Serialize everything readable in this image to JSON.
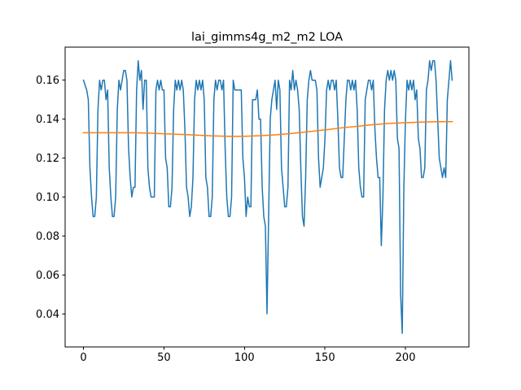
{
  "chart_data": {
    "type": "line",
    "title": "lai_gimms4g_m2_m2 LOA",
    "xlabel": "",
    "ylabel": "",
    "xlim": [
      -11.4,
      239.4
    ],
    "ylim": [
      0.023,
      0.177
    ],
    "xticks": [
      0,
      50,
      100,
      150,
      200
    ],
    "yticks": [
      0.04,
      0.06,
      0.08,
      0.1,
      0.12,
      0.14,
      0.16
    ],
    "ytick_decimals": 2,
    "grid": false,
    "legend": "none",
    "series": [
      {
        "color": "#1f77b4",
        "points": [
          [
            0,
            0.16
          ],
          [
            2,
            0.155
          ],
          [
            3,
            0.15
          ],
          [
            4,
            0.115
          ],
          [
            5,
            0.1
          ],
          [
            6,
            0.09
          ],
          [
            7,
            0.09
          ],
          [
            8,
            0.1
          ],
          [
            9,
            0.145
          ],
          [
            10,
            0.16
          ],
          [
            11,
            0.155
          ],
          [
            12,
            0.16
          ],
          [
            13,
            0.16
          ],
          [
            14,
            0.15
          ],
          [
            15,
            0.155
          ],
          [
            16,
            0.115
          ],
          [
            17,
            0.1
          ],
          [
            18,
            0.09
          ],
          [
            19,
            0.09
          ],
          [
            20,
            0.1
          ],
          [
            21,
            0.145
          ],
          [
            22,
            0.16
          ],
          [
            23,
            0.155
          ],
          [
            24,
            0.16
          ],
          [
            25,
            0.165
          ],
          [
            26,
            0.165
          ],
          [
            27,
            0.16
          ],
          [
            28,
            0.125
          ],
          [
            29,
            0.11
          ],
          [
            30,
            0.1
          ],
          [
            31,
            0.105
          ],
          [
            32,
            0.105
          ],
          [
            33,
            0.155
          ],
          [
            34,
            0.17
          ],
          [
            35,
            0.16
          ],
          [
            36,
            0.165
          ],
          [
            37,
            0.145
          ],
          [
            38,
            0.16
          ],
          [
            39,
            0.16
          ],
          [
            40,
            0.115
          ],
          [
            41,
            0.105
          ],
          [
            42,
            0.1
          ],
          [
            43,
            0.1
          ],
          [
            44,
            0.1
          ],
          [
            45,
            0.155
          ],
          [
            46,
            0.16
          ],
          [
            47,
            0.155
          ],
          [
            48,
            0.16
          ],
          [
            49,
            0.155
          ],
          [
            50,
            0.155
          ],
          [
            51,
            0.12
          ],
          [
            52,
            0.115
          ],
          [
            53,
            0.095
          ],
          [
            54,
            0.095
          ],
          [
            55,
            0.105
          ],
          [
            56,
            0.145
          ],
          [
            57,
            0.16
          ],
          [
            58,
            0.155
          ],
          [
            59,
            0.16
          ],
          [
            60,
            0.155
          ],
          [
            61,
            0.16
          ],
          [
            62,
            0.155
          ],
          [
            63,
            0.135
          ],
          [
            64,
            0.105
          ],
          [
            65,
            0.1
          ],
          [
            66,
            0.09
          ],
          [
            67,
            0.095
          ],
          [
            68,
            0.11
          ],
          [
            69,
            0.15
          ],
          [
            70,
            0.16
          ],
          [
            71,
            0.155
          ],
          [
            72,
            0.16
          ],
          [
            73,
            0.155
          ],
          [
            74,
            0.16
          ],
          [
            75,
            0.15
          ],
          [
            76,
            0.11
          ],
          [
            77,
            0.105
          ],
          [
            78,
            0.09
          ],
          [
            79,
            0.09
          ],
          [
            80,
            0.1
          ],
          [
            81,
            0.15
          ],
          [
            82,
            0.16
          ],
          [
            83,
            0.155
          ],
          [
            84,
            0.16
          ],
          [
            85,
            0.16
          ],
          [
            86,
            0.155
          ],
          [
            87,
            0.16
          ],
          [
            88,
            0.125
          ],
          [
            89,
            0.1
          ],
          [
            90,
            0.09
          ],
          [
            91,
            0.09
          ],
          [
            92,
            0.1
          ],
          [
            93,
            0.16
          ],
          [
            94,
            0.155
          ],
          [
            95,
            0.155
          ],
          [
            96,
            0.155
          ],
          [
            97,
            0.155
          ],
          [
            98,
            0.155
          ],
          [
            99,
            0.12
          ],
          [
            100,
            0.11
          ],
          [
            101,
            0.09
          ],
          [
            102,
            0.1
          ],
          [
            103,
            0.095
          ],
          [
            104,
            0.095
          ],
          [
            105,
            0.15
          ],
          [
            106,
            0.15
          ],
          [
            107,
            0.15
          ],
          [
            108,
            0.155
          ],
          [
            109,
            0.14
          ],
          [
            110,
            0.14
          ],
          [
            111,
            0.105
          ],
          [
            112,
            0.09
          ],
          [
            113,
            0.085
          ],
          [
            114,
            0.04
          ],
          [
            115,
            0.09
          ],
          [
            116,
            0.14
          ],
          [
            117,
            0.15
          ],
          [
            118,
            0.155
          ],
          [
            119,
            0.16
          ],
          [
            120,
            0.145
          ],
          [
            121,
            0.16
          ],
          [
            122,
            0.155
          ],
          [
            123,
            0.115
          ],
          [
            124,
            0.105
          ],
          [
            125,
            0.095
          ],
          [
            126,
            0.095
          ],
          [
            127,
            0.105
          ],
          [
            128,
            0.16
          ],
          [
            129,
            0.155
          ],
          [
            130,
            0.165
          ],
          [
            131,
            0.155
          ],
          [
            132,
            0.16
          ],
          [
            133,
            0.155
          ],
          [
            134,
            0.145
          ],
          [
            135,
            0.115
          ],
          [
            136,
            0.09
          ],
          [
            137,
            0.085
          ],
          [
            138,
            0.11
          ],
          [
            139,
            0.15
          ],
          [
            140,
            0.16
          ],
          [
            141,
            0.165
          ],
          [
            142,
            0.16
          ],
          [
            143,
            0.16
          ],
          [
            144,
            0.16
          ],
          [
            145,
            0.155
          ],
          [
            146,
            0.12
          ],
          [
            147,
            0.105
          ],
          [
            148,
            0.11
          ],
          [
            149,
            0.115
          ],
          [
            150,
            0.13
          ],
          [
            151,
            0.155
          ],
          [
            152,
            0.16
          ],
          [
            153,
            0.155
          ],
          [
            154,
            0.16
          ],
          [
            155,
            0.16
          ],
          [
            156,
            0.155
          ],
          [
            157,
            0.16
          ],
          [
            158,
            0.14
          ],
          [
            159,
            0.115
          ],
          [
            160,
            0.11
          ],
          [
            161,
            0.11
          ],
          [
            162,
            0.13
          ],
          [
            163,
            0.15
          ],
          [
            164,
            0.16
          ],
          [
            165,
            0.16
          ],
          [
            166,
            0.155
          ],
          [
            167,
            0.16
          ],
          [
            168,
            0.155
          ],
          [
            169,
            0.16
          ],
          [
            170,
            0.145
          ],
          [
            171,
            0.115
          ],
          [
            172,
            0.105
          ],
          [
            173,
            0.1
          ],
          [
            174,
            0.1
          ],
          [
            175,
            0.15
          ],
          [
            176,
            0.155
          ],
          [
            177,
            0.16
          ],
          [
            178,
            0.16
          ],
          [
            179,
            0.155
          ],
          [
            180,
            0.16
          ],
          [
            181,
            0.135
          ],
          [
            182,
            0.12
          ],
          [
            183,
            0.11
          ],
          [
            184,
            0.11
          ],
          [
            185,
            0.075
          ],
          [
            186,
            0.1
          ],
          [
            187,
            0.145
          ],
          [
            188,
            0.16
          ],
          [
            189,
            0.165
          ],
          [
            190,
            0.16
          ],
          [
            191,
            0.165
          ],
          [
            192,
            0.16
          ],
          [
            193,
            0.165
          ],
          [
            194,
            0.16
          ],
          [
            195,
            0.13
          ],
          [
            196,
            0.125
          ],
          [
            197,
            0.05
          ],
          [
            198,
            0.03
          ],
          [
            199,
            0.105
          ],
          [
            200,
            0.14
          ],
          [
            201,
            0.16
          ],
          [
            202,
            0.155
          ],
          [
            203,
            0.16
          ],
          [
            204,
            0.155
          ],
          [
            205,
            0.16
          ],
          [
            206,
            0.15
          ],
          [
            207,
            0.155
          ],
          [
            208,
            0.13
          ],
          [
            209,
            0.125
          ],
          [
            210,
            0.11
          ],
          [
            211,
            0.11
          ],
          [
            212,
            0.115
          ],
          [
            213,
            0.155
          ],
          [
            214,
            0.16
          ],
          [
            215,
            0.17
          ],
          [
            216,
            0.165
          ],
          [
            217,
            0.17
          ],
          [
            218,
            0.17
          ],
          [
            219,
            0.16
          ],
          [
            220,
            0.14
          ],
          [
            221,
            0.12
          ],
          [
            222,
            0.115
          ],
          [
            223,
            0.11
          ],
          [
            224,
            0.115
          ],
          [
            225,
            0.11
          ],
          [
            226,
            0.15
          ],
          [
            227,
            0.16
          ],
          [
            228,
            0.17
          ],
          [
            229,
            0.16
          ]
        ]
      },
      {
        "color": "#ff7f0e",
        "points": [
          [
            0,
            0.133
          ],
          [
            10,
            0.133
          ],
          [
            20,
            0.133
          ],
          [
            30,
            0.133
          ],
          [
            40,
            0.1328
          ],
          [
            50,
            0.1325
          ],
          [
            60,
            0.1322
          ],
          [
            70,
            0.1318
          ],
          [
            80,
            0.1314
          ],
          [
            90,
            0.1312
          ],
          [
            100,
            0.1312
          ],
          [
            110,
            0.1315
          ],
          [
            120,
            0.132
          ],
          [
            130,
            0.1327
          ],
          [
            140,
            0.1336
          ],
          [
            150,
            0.1345
          ],
          [
            160,
            0.1355
          ],
          [
            170,
            0.1363
          ],
          [
            180,
            0.1372
          ],
          [
            190,
            0.1378
          ],
          [
            200,
            0.1382
          ],
          [
            210,
            0.1385
          ],
          [
            220,
            0.1387
          ],
          [
            229,
            0.1387
          ]
        ]
      }
    ]
  }
}
